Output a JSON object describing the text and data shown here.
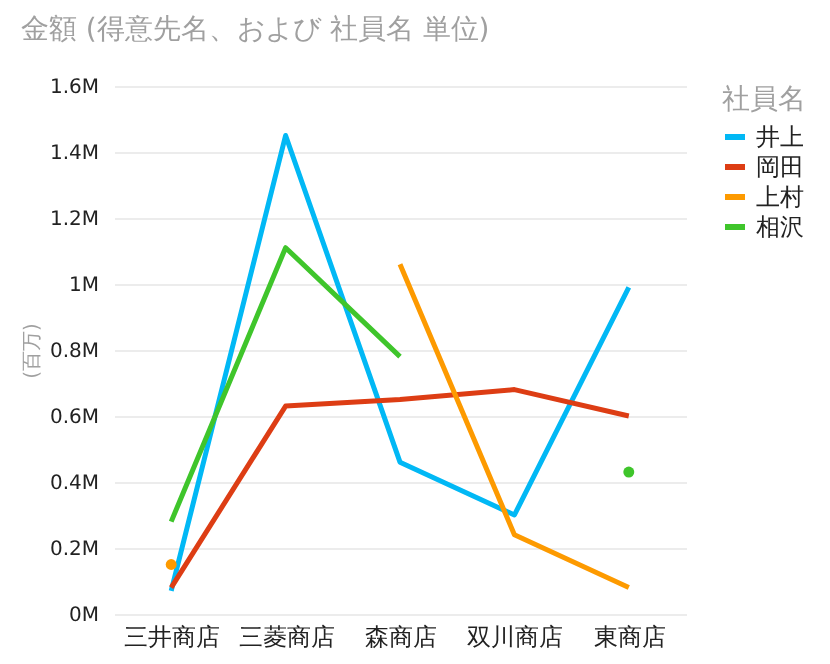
{
  "chart_data": {
    "type": "line",
    "title": "金額 (得意先名、および 社員名 単位)",
    "ylabel": "(百万)",
    "legend_title": "社員名",
    "categories": [
      "三井商店",
      "三菱商店",
      "森商店",
      "双川商店",
      "東商店"
    ],
    "series": [
      {
        "name": "井上",
        "color": "#01b8f5",
        "values": [
          0.07,
          1.45,
          0.46,
          0.3,
          0.99
        ]
      },
      {
        "name": "岡田",
        "color": "#dd3d14",
        "values": [
          0.08,
          0.63,
          0.65,
          0.68,
          0.6
        ]
      },
      {
        "name": "上村",
        "color": "#fd9a00",
        "values": [
          0.15,
          null,
          1.06,
          0.24,
          0.08
        ]
      },
      {
        "name": "相沢",
        "color": "#3fc52b",
        "values": [
          0.28,
          1.11,
          0.78,
          null,
          0.43
        ]
      }
    ],
    "ylim": [
      0,
      1.6
    ],
    "yticks": [
      {
        "value": 0,
        "label": "0M"
      },
      {
        "value": 0.2,
        "label": "0.2M"
      },
      {
        "value": 0.4,
        "label": "0.4M"
      },
      {
        "value": 0.6,
        "label": "0.6M"
      },
      {
        "value": 0.8,
        "label": "0.8M"
      },
      {
        "value": 1,
        "label": "1M"
      },
      {
        "value": 1.2,
        "label": "1.2M"
      },
      {
        "value": 1.4,
        "label": "1.4M"
      },
      {
        "value": 1.6,
        "label": "1.6M"
      }
    ],
    "grid": "y",
    "legend": "top right",
    "line_style": "solid"
  }
}
